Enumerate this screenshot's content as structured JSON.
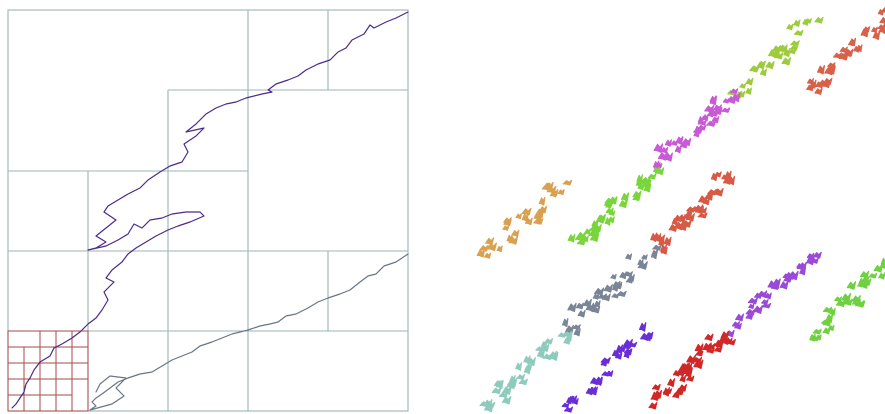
{
  "left_panel": {
    "frame_color": "#9fb3b3",
    "subgrid_color": "#a54848",
    "curves": [
      {
        "name": "upper-curve",
        "color": "#4b2a8c"
      },
      {
        "name": "lower-curve",
        "color": "#6a7585"
      }
    ]
  },
  "right_panel": {
    "clusters": [
      {
        "name": "cluster-green-top",
        "color": "#9ccc3c"
      },
      {
        "name": "cluster-orange-top",
        "color": "#d8614a"
      },
      {
        "name": "cluster-magenta",
        "color": "#c85ad6"
      },
      {
        "name": "cluster-orange",
        "color": "#d9a050"
      },
      {
        "name": "cluster-green-mid",
        "color": "#7ad43c"
      },
      {
        "name": "cluster-red-mid",
        "color": "#d65a46"
      },
      {
        "name": "cluster-slate",
        "color": "#7a8597"
      },
      {
        "name": "cluster-violet",
        "color": "#9a4ad6"
      },
      {
        "name": "cluster-green-right",
        "color": "#6fd140"
      },
      {
        "name": "cluster-teal",
        "color": "#8fcbbc"
      },
      {
        "name": "cluster-purple",
        "color": "#6a2ed6"
      },
      {
        "name": "cluster-red",
        "color": "#d02828"
      }
    ]
  }
}
